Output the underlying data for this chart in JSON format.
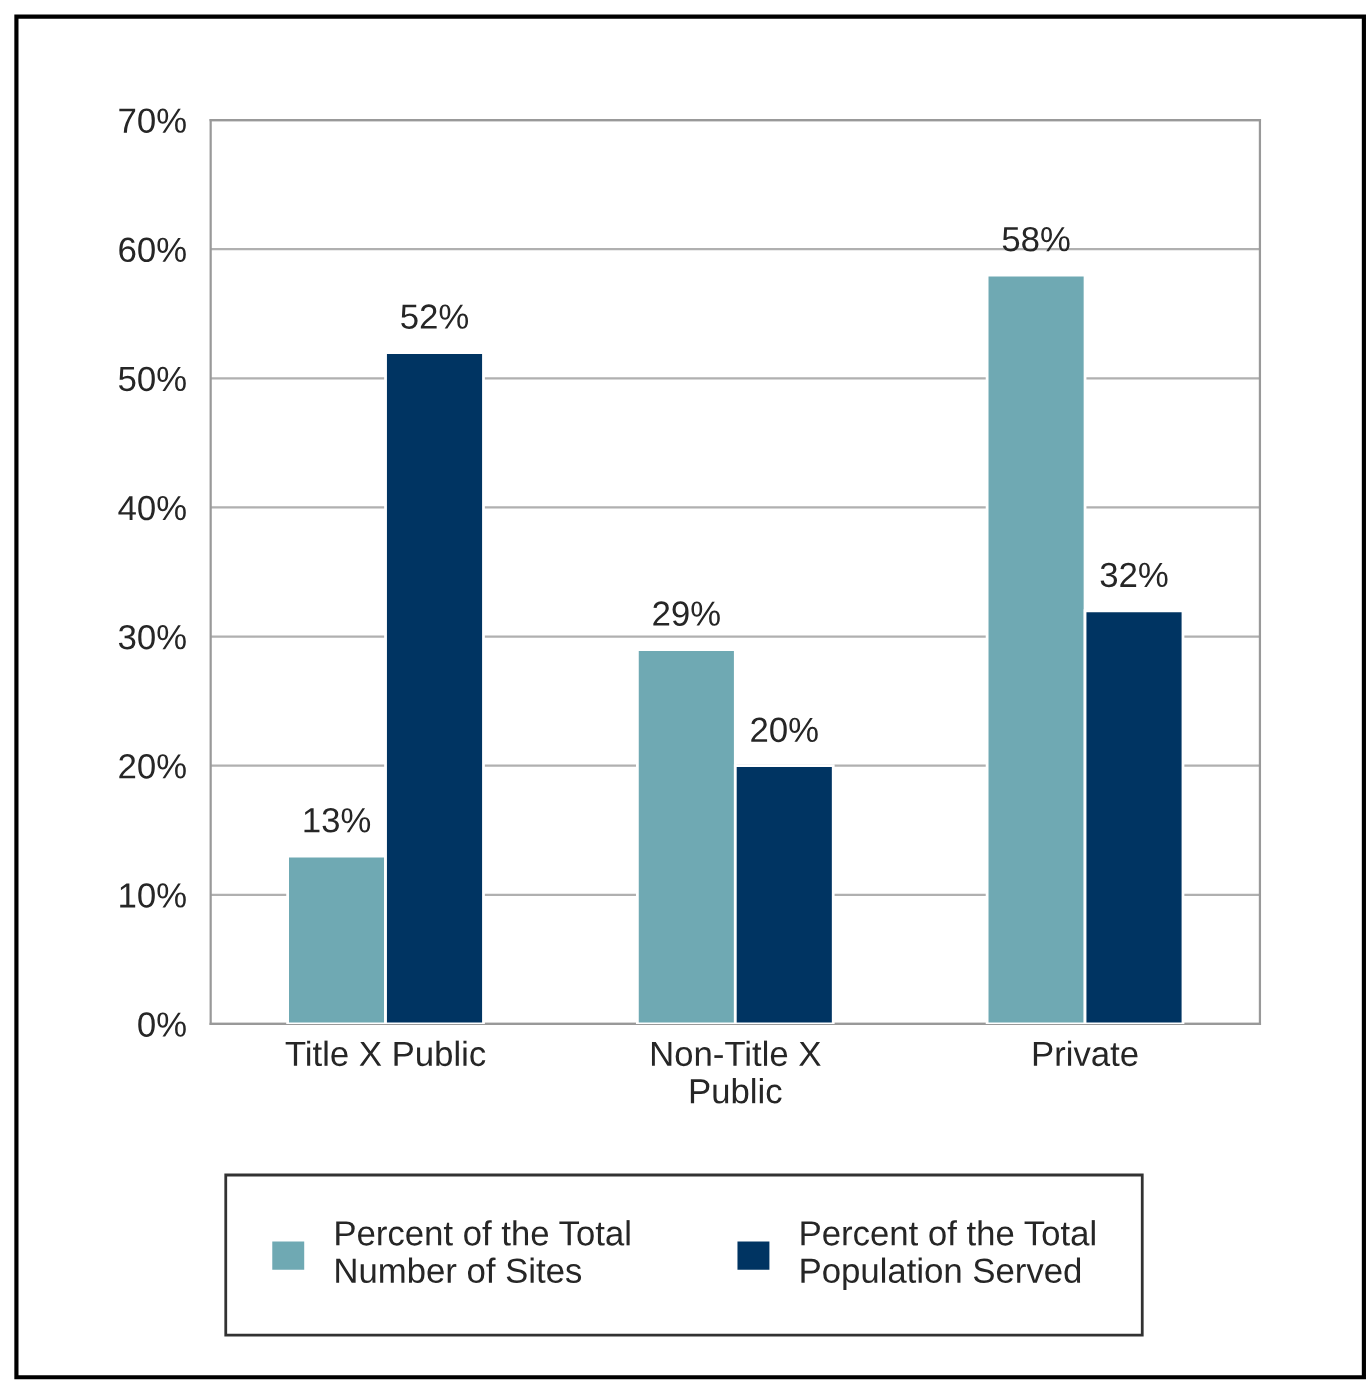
{
  "chart_data": {
    "type": "bar",
    "categories": [
      "Title X Public",
      "Non-Title X Public",
      "Private"
    ],
    "series": [
      {
        "name": "Percent of the Total Number of Sites",
        "color": "#6fa9b3",
        "values": [
          13,
          29,
          58
        ],
        "value_labels": [
          "13%",
          "29%",
          "58%"
        ]
      },
      {
        "name": "Percent of the Total Population Served",
        "color": "#003462",
        "values": [
          52,
          20,
          32
        ],
        "value_labels": [
          "52%",
          "20%",
          "32%"
        ]
      }
    ],
    "ylim": [
      0,
      70
    ],
    "yticks": [
      {
        "value": 0,
        "label": "0%"
      },
      {
        "value": 10,
        "label": "10%"
      },
      {
        "value": 20,
        "label": "20%"
      },
      {
        "value": 30,
        "label": "30%"
      },
      {
        "value": 40,
        "label": "40%"
      },
      {
        "value": 50,
        "label": "50%"
      },
      {
        "value": 60,
        "label": "60%"
      },
      {
        "value": 70,
        "label": "70%"
      }
    ],
    "grid": "y",
    "legend": "bottom"
  }
}
